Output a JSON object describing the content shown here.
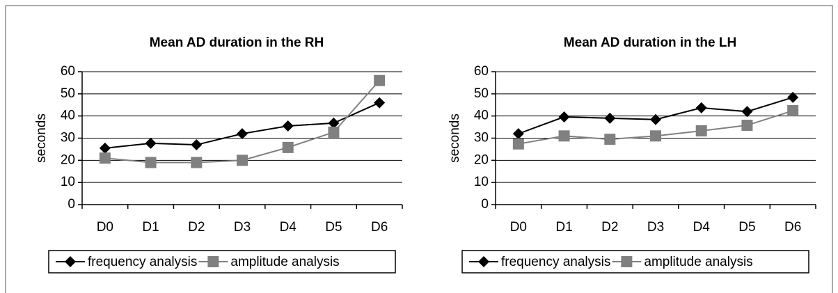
{
  "chart_data": [
    {
      "type": "line",
      "title": "Mean AD duration in the RH",
      "y_label": "seconds",
      "categories": [
        "D0",
        "D1",
        "D2",
        "D3",
        "D4",
        "D5",
        "D6"
      ],
      "series": [
        {
          "name": "frequency analysis",
          "color": "#000000",
          "marker": "diamond",
          "values": [
            25.5,
            27.7,
            27,
            32,
            35.5,
            36.8,
            46
          ]
        },
        {
          "name": "amplitude analysis",
          "color": "#808080",
          "marker": "square",
          "values": [
            21,
            19,
            19,
            20,
            25.8,
            32.7,
            56
          ]
        }
      ],
      "ylim": [
        0,
        60
      ],
      "yticks": [
        0,
        10,
        20,
        30,
        40,
        50,
        60
      ],
      "grid": true,
      "legend": "bottom"
    },
    {
      "type": "line",
      "title": "Mean AD duration in the LH",
      "y_label": "seconds",
      "categories": [
        "D0",
        "D1",
        "D2",
        "D3",
        "D4",
        "D5",
        "D6"
      ],
      "series": [
        {
          "name": "frequency analysis",
          "color": "#000000",
          "marker": "diamond",
          "values": [
            32,
            39.6,
            39,
            38.4,
            43.7,
            42,
            48.4
          ]
        },
        {
          "name": "amplitude analysis",
          "color": "#808080",
          "marker": "square",
          "values": [
            27.4,
            31,
            29.5,
            31,
            33.3,
            35.8,
            42.4
          ]
        }
      ],
      "ylim": [
        0,
        60
      ],
      "yticks": [
        0,
        10,
        20,
        30,
        40,
        50,
        60
      ],
      "grid": true,
      "legend": "bottom"
    }
  ]
}
